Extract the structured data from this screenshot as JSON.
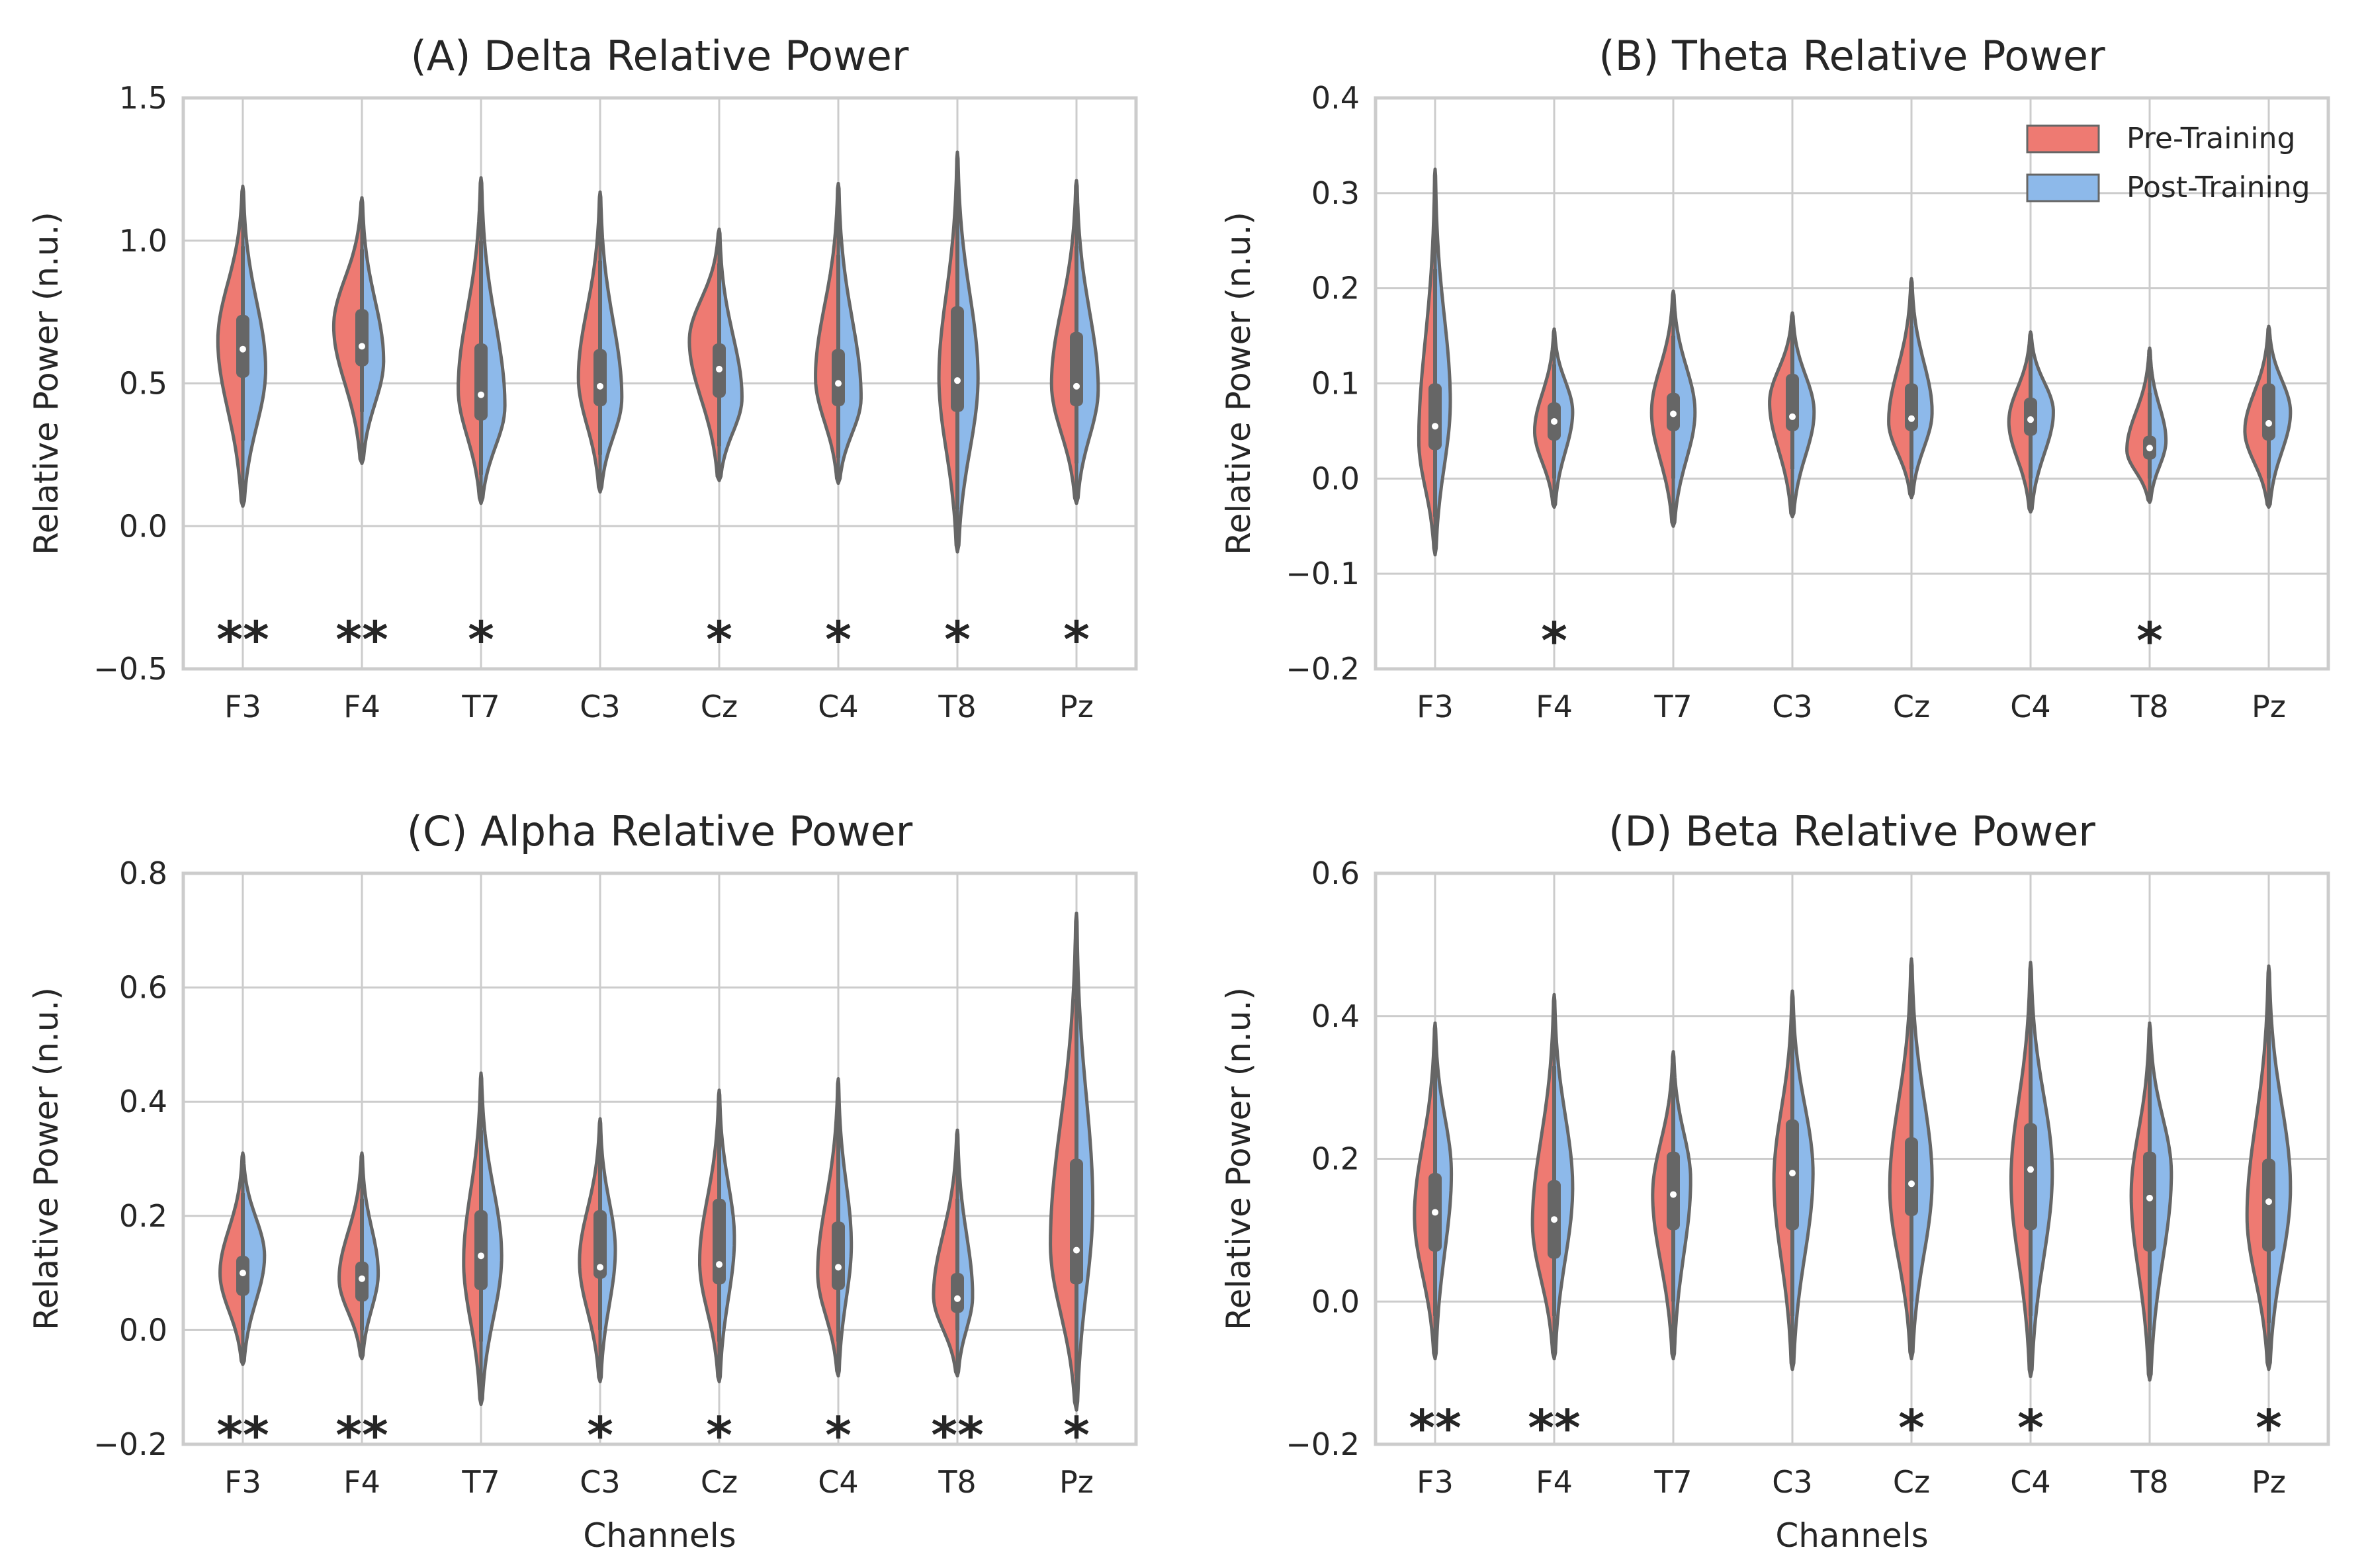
{
  "chart_data": [
    {
      "id": "A",
      "type": "violin",
      "title": "(A) Delta Relative Power",
      "xlabel": "",
      "ylabel": "Relative Power (n.u.)",
      "ylim": [
        -0.5,
        1.5
      ],
      "yticks": [
        -0.5,
        0.0,
        0.5,
        1.0,
        1.5
      ],
      "ytick_labels": [
        "−0.5",
        "0.0",
        "0.5",
        "1.0",
        "1.5"
      ],
      "categories": [
        "F3",
        "F4",
        "T7",
        "C3",
        "Cz",
        "C4",
        "T8",
        "Pz"
      ],
      "significance": [
        "**",
        "**",
        "*",
        "",
        "*",
        "*",
        "*",
        "*"
      ],
      "sig_y": -0.38,
      "series": [
        {
          "name": "Pre-Training",
          "color": "#EE7A72",
          "min": [
            0.07,
            0.22,
            0.08,
            0.12,
            0.16,
            0.15,
            -0.09,
            0.08
          ],
          "peak": [
            0.65,
            0.7,
            0.48,
            0.52,
            0.65,
            0.52,
            0.52,
            0.5
          ],
          "max": [
            1.19,
            1.15,
            1.22,
            1.17,
            1.04,
            1.2,
            1.31,
            1.21
          ],
          "width": [
            0.46,
            0.52,
            0.42,
            0.4,
            0.55,
            0.42,
            0.34,
            0.46
          ]
        },
        {
          "name": "Post-Training",
          "color": "#8DB9EA",
          "min": [
            0.07,
            0.22,
            0.08,
            0.12,
            0.16,
            0.15,
            -0.09,
            0.08
          ],
          "peak": [
            0.55,
            0.58,
            0.42,
            0.45,
            0.45,
            0.45,
            0.52,
            0.48
          ],
          "max": [
            1.19,
            1.15,
            1.22,
            1.17,
            1.04,
            1.2,
            1.31,
            1.21
          ],
          "width": [
            0.42,
            0.4,
            0.44,
            0.4,
            0.42,
            0.42,
            0.38,
            0.4
          ]
        }
      ],
      "box": {
        "q1": [
          0.52,
          0.56,
          0.37,
          0.42,
          0.45,
          0.42,
          0.4,
          0.42
        ],
        "median": [
          0.62,
          0.63,
          0.46,
          0.49,
          0.55,
          0.5,
          0.51,
          0.49
        ],
        "q3": [
          0.74,
          0.76,
          0.64,
          0.62,
          0.64,
          0.62,
          0.77,
          0.68
        ],
        "whisker_low": [
          0.3,
          0.4,
          0.18,
          0.25,
          0.28,
          0.24,
          0.06,
          0.22
        ],
        "whisker_high": [
          0.98,
          0.97,
          1.0,
          0.93,
          0.92,
          0.95,
          1.14,
          0.98
        ]
      }
    },
    {
      "id": "B",
      "type": "violin",
      "title": "(B) Theta Relative Power",
      "xlabel": "",
      "ylabel": "Relative Power (n.u.)",
      "ylim": [
        -0.2,
        0.4
      ],
      "yticks": [
        -0.2,
        -0.1,
        0.0,
        0.1,
        0.2,
        0.3,
        0.4
      ],
      "ytick_labels": [
        "−0.2",
        "−0.1",
        "0.0",
        "0.1",
        "0.2",
        "0.3",
        "0.4"
      ],
      "categories": [
        "F3",
        "F4",
        "T7",
        "C3",
        "Cz",
        "C4",
        "T8",
        "Pz"
      ],
      "significance": [
        "",
        "*",
        "",
        "",
        "",
        "",
        "*",
        ""
      ],
      "sig_y": -0.165,
      "legend": {
        "position": "top-right",
        "entries": [
          "Pre-Training",
          "Post-Training"
        ]
      },
      "series": [
        {
          "name": "Pre-Training",
          "color": "#EE7A72",
          "min": [
            -0.08,
            -0.03,
            -0.05,
            -0.04,
            -0.02,
            -0.035,
            -0.025,
            -0.03
          ],
          "peak": [
            0.04,
            0.05,
            0.07,
            0.08,
            0.06,
            0.06,
            0.03,
            0.05
          ],
          "max": [
            0.325,
            0.157,
            0.197,
            0.174,
            0.21,
            0.154,
            0.137,
            0.16
          ],
          "width": [
            0.3,
            0.36,
            0.4,
            0.42,
            0.42,
            0.4,
            0.42,
            0.44
          ]
        },
        {
          "name": "Post-Training",
          "color": "#8DB9EA",
          "min": [
            -0.08,
            -0.03,
            -0.05,
            -0.04,
            -0.02,
            -0.035,
            -0.025,
            -0.03
          ],
          "peak": [
            0.08,
            0.07,
            0.07,
            0.07,
            0.07,
            0.07,
            0.04,
            0.07
          ],
          "max": [
            0.325,
            0.157,
            0.197,
            0.174,
            0.21,
            0.154,
            0.137,
            0.16
          ],
          "width": [
            0.28,
            0.34,
            0.4,
            0.4,
            0.38,
            0.42,
            0.3,
            0.4
          ]
        }
      ],
      "box": {
        "q1": [
          0.03,
          0.04,
          0.05,
          0.05,
          0.05,
          0.045,
          0.02,
          0.04
        ],
        "median": [
          0.055,
          0.06,
          0.068,
          0.065,
          0.063,
          0.062,
          0.032,
          0.058
        ],
        "q3": [
          0.1,
          0.08,
          0.09,
          0.11,
          0.1,
          0.085,
          0.045,
          0.1
        ],
        "whisker_low": [
          -0.04,
          0.0,
          0.0,
          0.01,
          0.01,
          0.0,
          0.0,
          0.0
        ],
        "whisker_high": [
          0.22,
          0.12,
          0.15,
          0.15,
          0.16,
          0.13,
          0.09,
          0.14
        ]
      }
    },
    {
      "id": "C",
      "type": "violin",
      "title": "(C) Alpha Relative Power",
      "xlabel": "Channels",
      "ylabel": "Relative Power (n.u.)",
      "ylim": [
        -0.2,
        0.8
      ],
      "yticks": [
        -0.2,
        0.0,
        0.2,
        0.4,
        0.6,
        0.8
      ],
      "ytick_labels": [
        "−0.2",
        "0.0",
        "0.2",
        "0.4",
        "0.6",
        "0.8"
      ],
      "categories": [
        "F3",
        "F4",
        "T7",
        "C3",
        "Cz",
        "C4",
        "T8",
        "Pz"
      ],
      "significance": [
        "**",
        "**",
        "",
        "*",
        "*",
        "*",
        "**",
        "*"
      ],
      "sig_y": -0.175,
      "series": [
        {
          "name": "Pre-Training",
          "color": "#EE7A72",
          "min": [
            -0.06,
            -0.05,
            -0.13,
            -0.09,
            -0.09,
            -0.08,
            -0.08,
            -0.14
          ],
          "peak": [
            0.1,
            0.09,
            0.12,
            0.12,
            0.12,
            0.1,
            0.06,
            0.15
          ],
          "max": [
            0.31,
            0.31,
            0.45,
            0.37,
            0.42,
            0.44,
            0.35,
            0.73
          ],
          "width": [
            0.42,
            0.42,
            0.32,
            0.38,
            0.36,
            0.38,
            0.44,
            0.48
          ]
        },
        {
          "name": "Post-Training",
          "color": "#8DB9EA",
          "min": [
            -0.06,
            -0.05,
            -0.13,
            -0.09,
            -0.09,
            -0.08,
            -0.08,
            -0.14
          ],
          "peak": [
            0.13,
            0.1,
            0.13,
            0.14,
            0.16,
            0.15,
            0.06,
            0.22
          ],
          "max": [
            0.31,
            0.31,
            0.45,
            0.37,
            0.42,
            0.44,
            0.35,
            0.73
          ],
          "width": [
            0.4,
            0.3,
            0.38,
            0.28,
            0.28,
            0.24,
            0.28,
            0.3
          ]
        }
      ],
      "box": {
        "q1": [
          0.06,
          0.05,
          0.07,
          0.09,
          0.08,
          0.07,
          0.03,
          0.08
        ],
        "median": [
          0.1,
          0.09,
          0.13,
          0.11,
          0.115,
          0.11,
          0.055,
          0.14
        ],
        "q3": [
          0.13,
          0.12,
          0.21,
          0.21,
          0.23,
          0.19,
          0.1,
          0.3
        ],
        "whisker_low": [
          0.0,
          0.0,
          -0.02,
          0.0,
          -0.02,
          -0.02,
          0.0,
          -0.08
        ],
        "whisker_high": [
          0.24,
          0.23,
          0.35,
          0.33,
          0.36,
          0.35,
          0.23,
          0.58
        ]
      }
    },
    {
      "id": "D",
      "type": "violin",
      "title": "(D) Beta Relative Power",
      "xlabel": "Channels",
      "ylabel": "Relative Power (n.u.)",
      "ylim": [
        -0.2,
        0.6
      ],
      "yticks": [
        -0.2,
        0.0,
        0.2,
        0.4,
        0.6
      ],
      "ytick_labels": [
        "−0.2",
        "0.0",
        "0.2",
        "0.4",
        "0.6"
      ],
      "categories": [
        "F3",
        "F4",
        "T7",
        "C3",
        "Cz",
        "C4",
        "T8",
        "Pz"
      ],
      "significance": [
        "**",
        "**",
        "",
        "",
        "*",
        "*",
        "",
        "*"
      ],
      "sig_y": -0.17,
      "series": [
        {
          "name": "Pre-Training",
          "color": "#EE7A72",
          "min": [
            -0.08,
            -0.08,
            -0.08,
            -0.095,
            -0.08,
            -0.105,
            -0.11,
            -0.095
          ],
          "peak": [
            0.12,
            0.11,
            0.15,
            0.17,
            0.16,
            0.17,
            0.15,
            0.12
          ],
          "max": [
            0.39,
            0.43,
            0.35,
            0.435,
            0.48,
            0.475,
            0.39,
            0.47
          ],
          "width": [
            0.38,
            0.4,
            0.38,
            0.34,
            0.4,
            0.36,
            0.34,
            0.4
          ]
        },
        {
          "name": "Post-Training",
          "color": "#8DB9EA",
          "min": [
            -0.08,
            -0.08,
            -0.08,
            -0.095,
            -0.08,
            -0.105,
            -0.11,
            -0.095
          ],
          "peak": [
            0.18,
            0.16,
            0.17,
            0.18,
            0.17,
            0.18,
            0.18,
            0.16
          ],
          "max": [
            0.39,
            0.43,
            0.35,
            0.435,
            0.48,
            0.475,
            0.39,
            0.47
          ],
          "width": [
            0.3,
            0.34,
            0.32,
            0.38,
            0.38,
            0.4,
            0.4,
            0.4
          ]
        }
      ],
      "box": {
        "q1": [
          0.07,
          0.06,
          0.1,
          0.1,
          0.12,
          0.1,
          0.07,
          0.07
        ],
        "median": [
          0.125,
          0.115,
          0.15,
          0.18,
          0.165,
          0.185,
          0.145,
          0.14
        ],
        "q3": [
          0.18,
          0.17,
          0.21,
          0.255,
          0.23,
          0.25,
          0.21,
          0.2
        ],
        "whisker_low": [
          -0.02,
          -0.02,
          0.0,
          -0.02,
          0.0,
          -0.02,
          -0.04,
          -0.03
        ],
        "whisker_high": [
          0.32,
          0.33,
          0.3,
          0.37,
          0.4,
          0.4,
          0.34,
          0.38
        ]
      }
    }
  ]
}
